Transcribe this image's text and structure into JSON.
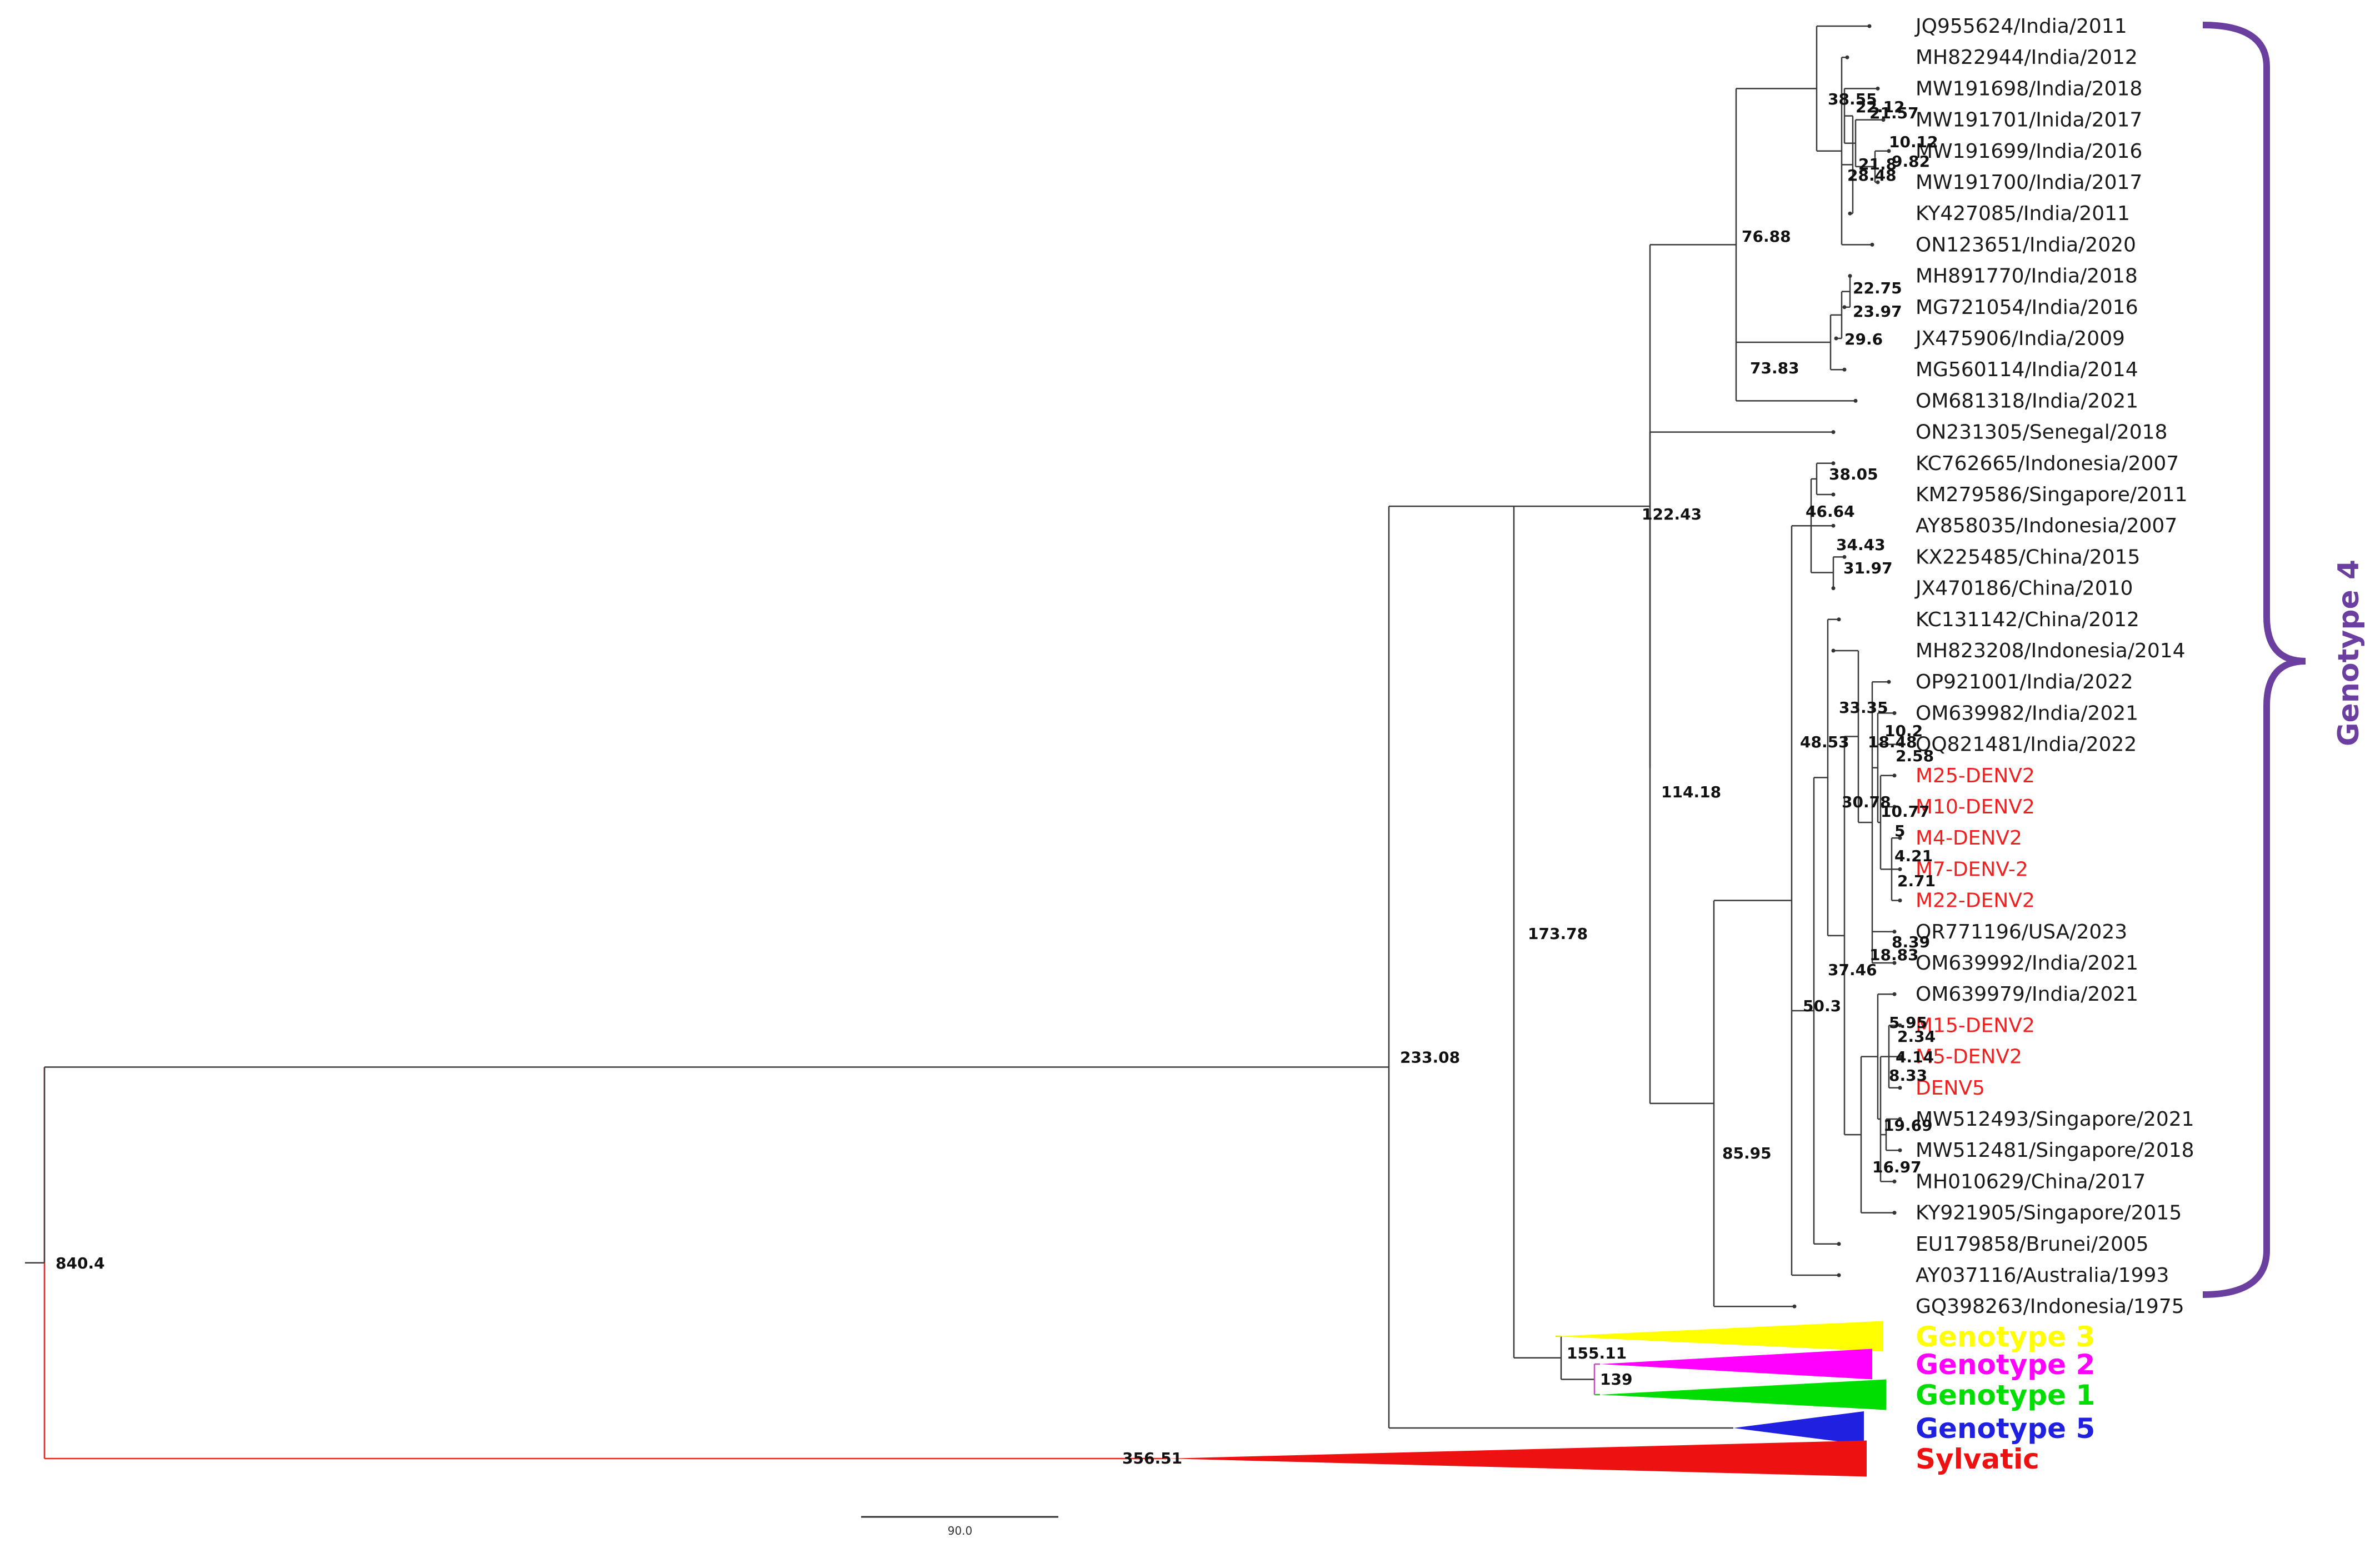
{
  "tree": {
    "tips": [
      {
        "label": "JQ955624/India/2011",
        "red": false
      },
      {
        "label": "MH822944/India/2012",
        "red": false
      },
      {
        "label": "MW191698/India/2018",
        "red": false
      },
      {
        "label": "MW191701/Inida/2017",
        "red": false
      },
      {
        "label": "MW191699/India/2016",
        "red": false
      },
      {
        "label": "MW191700/India/2017",
        "red": false
      },
      {
        "label": "KY427085/India/2011",
        "red": false
      },
      {
        "label": "ON123651/India/2020",
        "red": false
      },
      {
        "label": "MH891770/India/2018",
        "red": false
      },
      {
        "label": "MG721054/India/2016",
        "red": false
      },
      {
        "label": "JX475906/India/2009",
        "red": false
      },
      {
        "label": "MG560114/India/2014",
        "red": false
      },
      {
        "label": "OM681318/India/2021",
        "red": false
      },
      {
        "label": "ON231305/Senegal/2018",
        "red": false
      },
      {
        "label": "KC762665/Indonesia/2007",
        "red": false
      },
      {
        "label": "KM279586/Singapore/2011",
        "red": false
      },
      {
        "label": "AY858035/Indonesia/2007",
        "red": false
      },
      {
        "label": "KX225485/China/2015",
        "red": false
      },
      {
        "label": "JX470186/China/2010",
        "red": false
      },
      {
        "label": "KC131142/China/2012",
        "red": false
      },
      {
        "label": "MH823208/Indonesia/2014",
        "red": false
      },
      {
        "label": "OP921001/India/2022",
        "red": false
      },
      {
        "label": "OM639982/India/2021",
        "red": false
      },
      {
        "label": "OQ821481/India/2022",
        "red": false
      },
      {
        "label": "M25-DENV2",
        "red": true
      },
      {
        "label": "M10-DENV2",
        "red": true
      },
      {
        "label": "M4-DENV2",
        "red": true
      },
      {
        "label": "M7-DENV-2",
        "red": true
      },
      {
        "label": "M22-DENV2",
        "red": true
      },
      {
        "label": "OR771196/USA/2023",
        "red": false
      },
      {
        "label": "OM639992/India/2021",
        "red": false
      },
      {
        "label": "OM639979/India/2021",
        "red": false
      },
      {
        "label": "M15-DENV2",
        "red": true
      },
      {
        "label": "M5-DENV2",
        "red": true
      },
      {
        "label": "DENV5",
        "red": true
      },
      {
        "label": "MW512493/Singapore/2021",
        "red": false
      },
      {
        "label": "MW512481/Singapore/2018",
        "red": false
      },
      {
        "label": "MH010629/China/2017",
        "red": false
      },
      {
        "label": "KY921905/Singapore/2015",
        "red": false
      },
      {
        "label": "EU179858/Brunei/2005",
        "red": false
      },
      {
        "label": "AY037116/Australia/1993",
        "red": false
      },
      {
        "label": "GQ398263/Indonesia/1975",
        "red": false
      }
    ],
    "node_labels": [
      {
        "id": "root",
        "text": "840.4"
      },
      {
        "id": "n233",
        "text": "233.08"
      },
      {
        "id": "n173",
        "text": "173.78"
      },
      {
        "id": "n122",
        "text": "122.43"
      },
      {
        "id": "n114",
        "text": "114.18"
      },
      {
        "id": "n85",
        "text": "85.95"
      },
      {
        "id": "n76",
        "text": "76.88"
      },
      {
        "id": "n73",
        "text": "73.83"
      },
      {
        "id": "n50",
        "text": "50.3"
      },
      {
        "id": "n48",
        "text": "48.53"
      },
      {
        "id": "n46",
        "text": "46.64"
      },
      {
        "id": "n38a",
        "text": "38.55"
      },
      {
        "id": "n38b",
        "text": "38.05"
      },
      {
        "id": "n37",
        "text": "37.46"
      },
      {
        "id": "n34",
        "text": "34.43"
      },
      {
        "id": "n33",
        "text": "33.35"
      },
      {
        "id": "n31",
        "text": "31.97"
      },
      {
        "id": "n30",
        "text": "30.78"
      },
      {
        "id": "n29",
        "text": "29.6"
      },
      {
        "id": "n28",
        "text": "28.48"
      },
      {
        "id": "n23",
        "text": "23.97"
      },
      {
        "id": "n22a",
        "text": "22.75"
      },
      {
        "id": "n22b",
        "text": "22.12"
      },
      {
        "id": "n21",
        "text": "21.57"
      },
      {
        "id": "n21b",
        "text": "21.8"
      },
      {
        "id": "n18a",
        "text": "18.83"
      },
      {
        "id": "n18b",
        "text": "18.48"
      },
      {
        "id": "n16",
        "text": "16.97"
      },
      {
        "id": "n19",
        "text": "19.69"
      },
      {
        "id": "n10a",
        "text": "10.12"
      },
      {
        "id": "n10b",
        "text": "10.2"
      },
      {
        "id": "n10c",
        "text": "10.77"
      },
      {
        "id": "n9",
        "text": "9.82"
      },
      {
        "id": "n8a",
        "text": "8.39"
      },
      {
        "id": "n8b",
        "text": "8.33"
      },
      {
        "id": "n5a",
        "text": "5"
      },
      {
        "id": "n5b",
        "text": "5.95"
      },
      {
        "id": "n4a",
        "text": "4.21"
      },
      {
        "id": "n4b",
        "text": "4.14"
      },
      {
        "id": "n2a",
        "text": "2.58"
      },
      {
        "id": "n2b",
        "text": "2.71"
      },
      {
        "id": "n2c",
        "text": "2.34"
      },
      {
        "id": "n155",
        "text": "155.11"
      },
      {
        "id": "n139",
        "text": "139"
      },
      {
        "id": "n356",
        "text": "356.51"
      }
    ],
    "collapsed_groups": [
      {
        "id": "g3",
        "label": "Genotype 3",
        "color": "#ffff00"
      },
      {
        "id": "g2",
        "label": "Genotype 2",
        "color": "#ff00ff"
      },
      {
        "id": "g1",
        "label": "Genotype 1",
        "color": "#00dd00"
      },
      {
        "id": "g5",
        "label": "Genotype 5",
        "color": "#2020e0"
      },
      {
        "id": "syl",
        "label": "Sylvatic",
        "color": "#ee1111"
      }
    ],
    "clade_bracket": {
      "label": "Genotype 4",
      "color": "#6a3fa0"
    },
    "scale_bar": {
      "label": "90.0"
    }
  }
}
